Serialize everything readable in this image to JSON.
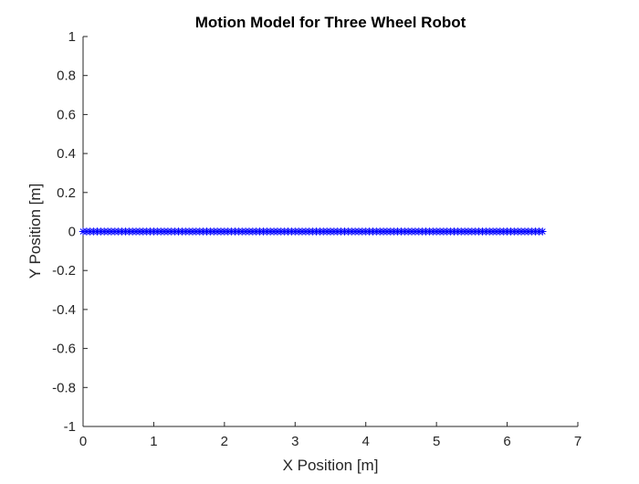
{
  "chart_data": {
    "type": "scatter",
    "title": "Motion Model for Three Wheel Robot",
    "xlabel": "X Position [m]",
    "ylabel": "Y Position [m]",
    "xlim": [
      0,
      7
    ],
    "ylim": [
      -1,
      1
    ],
    "xticks": [
      0,
      1,
      2,
      3,
      4,
      5,
      6,
      7
    ],
    "xtick_labels": [
      "0",
      "1",
      "2",
      "3",
      "4",
      "5",
      "6",
      "7"
    ],
    "yticks": [
      1,
      0.8,
      0.6,
      0.4,
      0.2,
      0,
      -0.2,
      -0.4,
      -0.6,
      -0.8,
      -1
    ],
    "ytick_labels": [
      "1",
      "0.8",
      "0.6",
      "0.4",
      "0.2",
      "0",
      "-0.2",
      "-0.4",
      "-0.6",
      "-0.8",
      "-1"
    ],
    "grid": false,
    "marker": "asterisk",
    "series": [
      {
        "color": "#0000ff",
        "x_start": 0,
        "x_end": 6.5,
        "x_step": 0.05,
        "y": 0
      }
    ]
  }
}
